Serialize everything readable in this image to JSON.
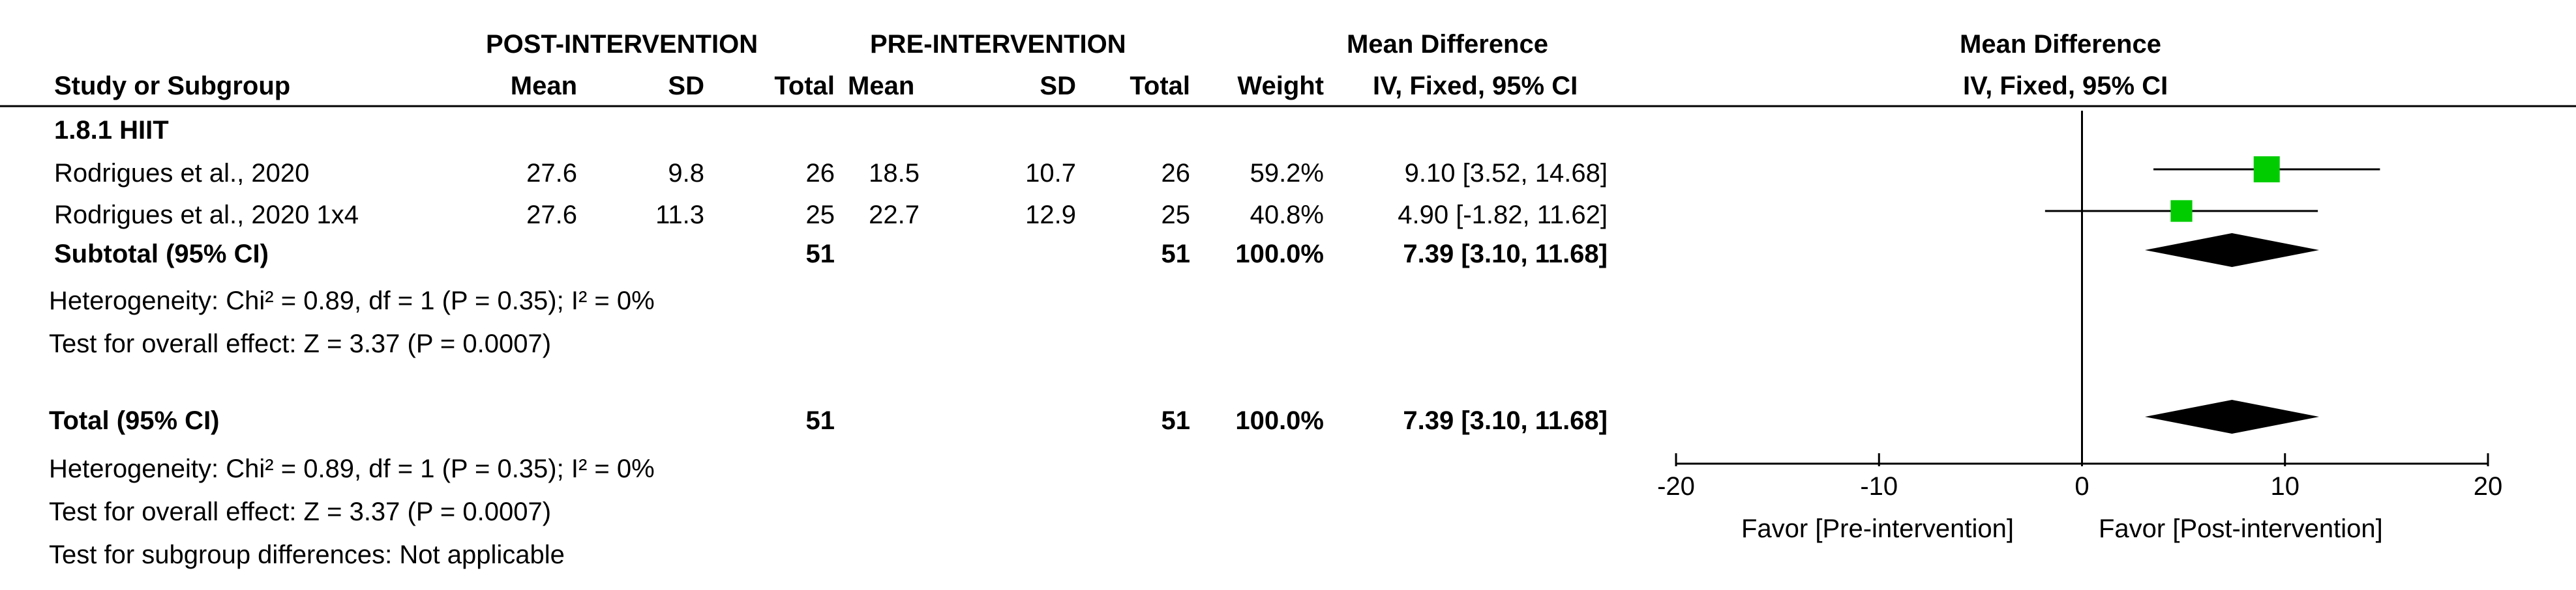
{
  "headers": {
    "group_post": "POST-INTERVENTION",
    "group_pre": "PRE-INTERVENTION",
    "study": "Study or Subgroup",
    "mean": "Mean",
    "sd": "SD",
    "total": "Total",
    "weight": "Weight",
    "md_line1": "Mean Difference",
    "md_line2": "IV, Fixed, 95% CI",
    "plot_line1": "Mean Difference",
    "plot_line2": "IV, Fixed, 95% CI"
  },
  "subgroup_title": "1.8.1 HIIT",
  "studies": [
    {
      "name": "Rodrigues et al., 2020",
      "post_mean": "27.6",
      "post_sd": "9.8",
      "post_total": "26",
      "pre_mean": "18.5",
      "pre_sd": "10.7",
      "pre_total": "26",
      "weight": "59.2%",
      "ci_text": "9.10 [3.52, 14.68]"
    },
    {
      "name": "Rodrigues et al., 2020 1x4",
      "post_mean": "27.6",
      "post_sd": "11.3",
      "post_total": "25",
      "pre_mean": "22.7",
      "pre_sd": "12.9",
      "pre_total": "25",
      "weight": "40.8%",
      "ci_text": "4.90 [-1.82, 11.62]"
    }
  ],
  "subtotal": {
    "label": "Subtotal (95% CI)",
    "post_total": "51",
    "pre_total": "51",
    "weight": "100.0%",
    "ci_text": "7.39 [3.10, 11.68]"
  },
  "subtotal_heterogeneity": "Heterogeneity: Chi² = 0.89, df = 1 (P = 0.35); I² = 0%",
  "subtotal_effect": "Test for overall effect: Z = 3.37 (P = 0.0007)",
  "total": {
    "label": "Total (95% CI)",
    "post_total": "51",
    "pre_total": "51",
    "weight": "100.0%",
    "ci_text": "7.39 [3.10, 11.68]"
  },
  "total_heterogeneity": "Heterogeneity: Chi² = 0.89, df = 1 (P = 0.35); I² = 0%",
  "total_effect": "Test for overall effect: Z = 3.37 (P = 0.0007)",
  "subgroup_diff": "Test for subgroup differences: Not applicable",
  "axis": {
    "favor_left": "Favor [Pre-intervention]",
    "favor_right": "Favor [Post-intervention]"
  },
  "colors": {
    "square": "#00cc00",
    "diamond": "#000000",
    "line": "#000000"
  },
  "chart_data": {
    "type": "forest",
    "xlim": [
      -20,
      20
    ],
    "ticks": [
      -20,
      -10,
      0,
      10,
      20
    ],
    "tick_labels": [
      "-20",
      "-10",
      "0",
      "10",
      "20"
    ],
    "studies": [
      {
        "name": "Rodrigues et al., 2020",
        "md": 9.1,
        "lower": 3.52,
        "upper": 14.68,
        "weight": 59.2
      },
      {
        "name": "Rodrigues et al., 2020 1x4",
        "md": 4.9,
        "lower": -1.82,
        "upper": 11.62,
        "weight": 40.8
      }
    ],
    "pooled": [
      {
        "name": "Subtotal (95% CI)",
        "md": 7.39,
        "lower": 3.1,
        "upper": 11.68
      },
      {
        "name": "Total (95% CI)",
        "md": 7.39,
        "lower": 3.1,
        "upper": 11.68
      }
    ]
  }
}
